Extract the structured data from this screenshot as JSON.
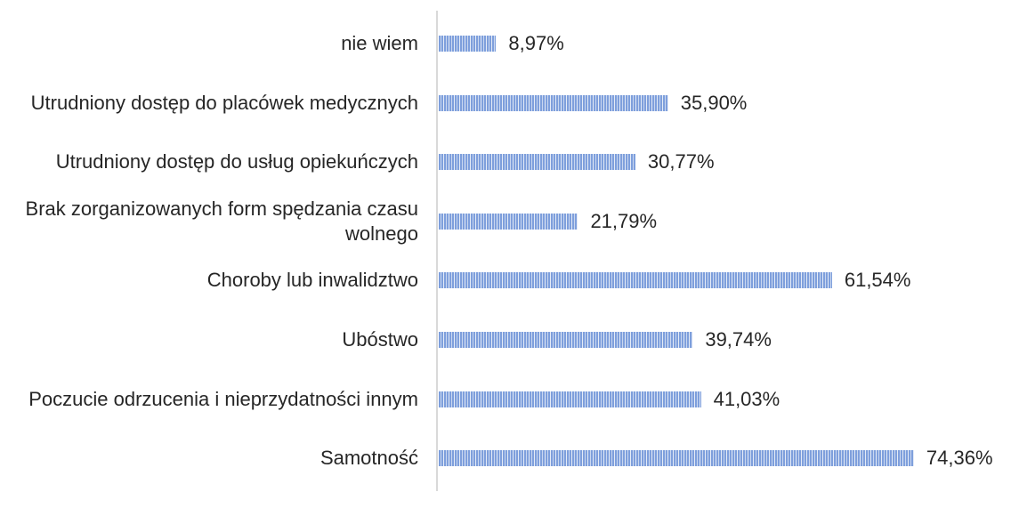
{
  "chart_data": {
    "type": "bar",
    "orientation": "horizontal",
    "categories": [
      "nie wiem",
      "Utrudniony dostęp do placówek medycznych",
      "Utrudniony dostęp do usług opiekuńczych",
      "Brak zorganizowanych form spędzania czasu wolnego",
      "Choroby lub inwalidztwo",
      "Ubóstwo",
      "Poczucie odrzucenia i nieprzydatności innym",
      "Samotność"
    ],
    "values": [
      8.97,
      35.9,
      30.77,
      21.79,
      61.54,
      39.74,
      41.03,
      74.36
    ],
    "value_labels": [
      "8,97%",
      "35,90%",
      "30,77%",
      "21,79%",
      "61,54%",
      "39,74%",
      "41,03%",
      "74,36%"
    ],
    "color": "#7e9fdc"
  }
}
